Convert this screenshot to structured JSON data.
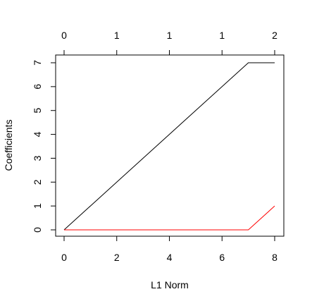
{
  "chart_data": {
    "type": "line",
    "title": "",
    "xlabel": "L1 Norm",
    "ylabel": "Coefficients",
    "xlim": [
      0,
      8
    ],
    "ylim": [
      0,
      7
    ],
    "x_ticks": [
      "0",
      "2",
      "4",
      "6",
      "8"
    ],
    "y_ticks": [
      "0",
      "1",
      "2",
      "3",
      "4",
      "5",
      "6",
      "7"
    ],
    "top_axis": {
      "ticks_x": [
        0,
        2,
        4,
        6,
        8
      ],
      "labels": [
        "0",
        "1",
        "1",
        "1",
        "2"
      ]
    },
    "grid": false,
    "legend": "none",
    "series": [
      {
        "color": "#000000",
        "x": [
          0,
          7,
          8
        ],
        "y": [
          0,
          7,
          7
        ]
      },
      {
        "color": "#ff0000",
        "x": [
          0,
          7,
          8
        ],
        "y": [
          0,
          0,
          1
        ]
      }
    ]
  }
}
